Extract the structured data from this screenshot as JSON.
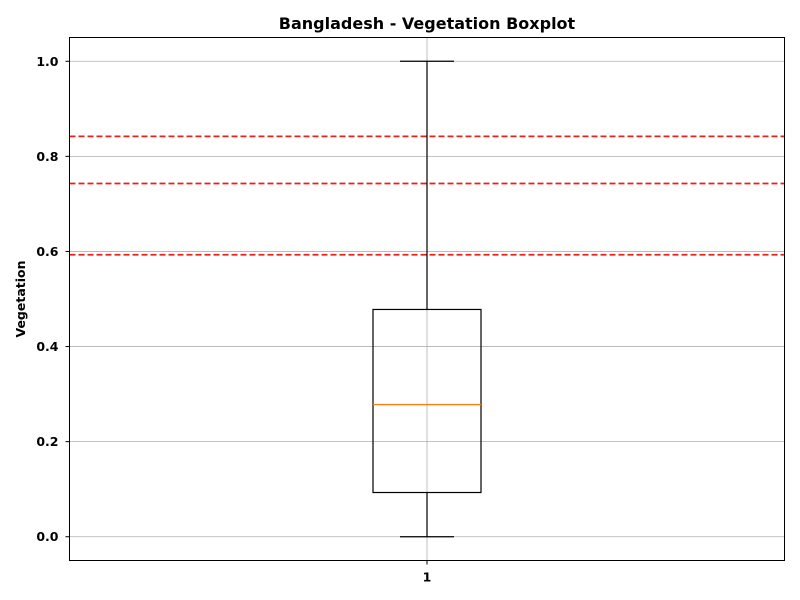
{
  "chart_data": {
    "type": "boxplot",
    "title": "Bangladesh - Vegetation Boxplot",
    "xlabel": "",
    "ylabel": "Vegetation",
    "categories": [
      "1"
    ],
    "ylim": [
      -0.05,
      1.05
    ],
    "yticks": [
      0.0,
      0.2,
      0.4,
      0.6,
      0.8,
      1.0
    ],
    "ytick_labels": [
      "0.0",
      "0.2",
      "0.4",
      "0.6",
      "0.8",
      "1.0"
    ],
    "grid": true,
    "boxes": [
      {
        "category": "1",
        "whisker_low": 0.0,
        "q1": 0.093,
        "median": 0.278,
        "q3": 0.478,
        "whisker_high": 1.0
      }
    ],
    "reference_lines": [
      {
        "y": 0.593,
        "color": "#e8211d",
        "style": "dashed"
      },
      {
        "y": 0.743,
        "color": "#e8211d",
        "style": "dashed"
      },
      {
        "y": 0.842,
        "color": "#e8211d",
        "style": "dashed"
      }
    ],
    "colors": {
      "box": "#000000",
      "median": "#ff7f0e",
      "grid": "#b0b0b0",
      "reference": "#e8211d"
    }
  }
}
